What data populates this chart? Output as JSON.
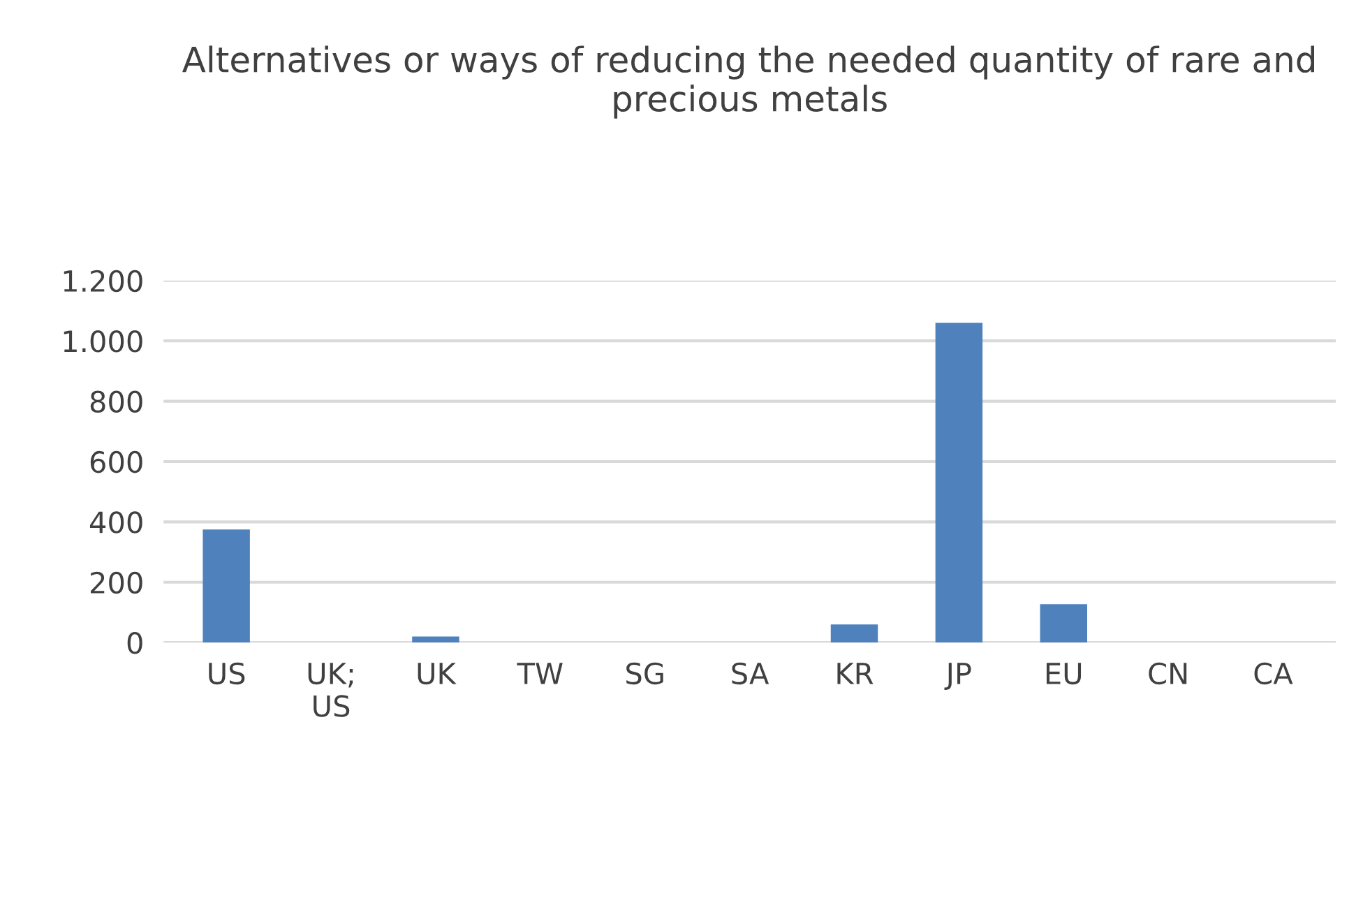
{
  "chart_data": {
    "type": "bar",
    "title": "Alternatives or ways of reducing the needed quantity of rare and precious metals",
    "categories": [
      "US",
      "UK;\nUS",
      "UK",
      "TW",
      "SG",
      "SA",
      "KR",
      "JP",
      "EU",
      "CN",
      "CA"
    ],
    "values": [
      375,
      0,
      20,
      0,
      0,
      0,
      60,
      1060,
      127,
      0,
      0
    ],
    "color": "#4f81bd",
    "ylim": [
      0,
      1200
    ],
    "yticks": [
      0,
      200,
      400,
      600,
      800,
      {
        "value": 1000,
        "label": "1.000"
      },
      {
        "value": 1200,
        "label": "1.200"
      }
    ],
    "grid": "y"
  }
}
